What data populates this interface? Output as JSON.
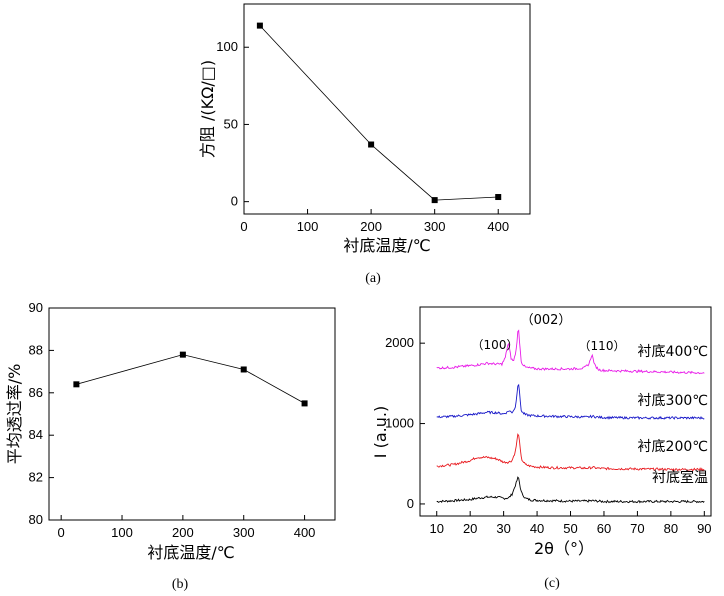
{
  "chart_data": [
    {
      "type": "line",
      "caption": "(a)",
      "xlabel": "衬底温度/℃",
      "ylabel": "方阻 /(KΩ/□)",
      "xlim": [
        0,
        450
      ],
      "ylim": [
        -8,
        128
      ],
      "xticks": [
        0,
        100,
        200,
        300,
        400
      ],
      "yticks": [
        0,
        50,
        100
      ],
      "x": [
        25,
        200,
        300,
        400
      ],
      "series": [
        {
          "values": [
            114,
            37,
            1,
            3
          ]
        }
      ],
      "marker": "square"
    },
    {
      "type": "line",
      "caption": "(b)",
      "xlabel": "衬底温度/℃",
      "ylabel": "平均透过率/%",
      "xlim": [
        -20,
        450
      ],
      "ylim": [
        80,
        90
      ],
      "xticks": [
        0,
        100,
        200,
        300,
        400
      ],
      "yticks": [
        80,
        82,
        84,
        86,
        88,
        90
      ],
      "x": [
        25,
        200,
        300,
        400
      ],
      "series": [
        {
          "values": [
            86.4,
            87.8,
            87.1,
            85.5
          ]
        }
      ],
      "marker": "square"
    },
    {
      "type": "line",
      "caption": "(c)",
      "xlabel": "2θ（°）",
      "ylabel": "I  (a.u.)",
      "xlim": [
        5,
        92
      ],
      "ylim": [
        -150,
        2450
      ],
      "xticks": [
        10,
        20,
        30,
        40,
        50,
        60,
        70,
        80,
        90
      ],
      "yticks": [
        0,
        1000,
        2000
      ],
      "peak_labels": [
        "（100）",
        "（002）",
        "（110）"
      ],
      "series": [
        {
          "name": "衬底室温",
          "color": "#000000",
          "x": [
            10,
            15,
            20,
            22,
            25,
            28,
            30,
            31.5,
            32.5,
            33.5,
            34.4,
            35.3,
            36.5,
            38,
            40,
            45,
            50,
            55,
            56.6,
            58,
            60,
            70,
            80,
            90
          ],
          "values": [
            30,
            40,
            55,
            70,
            85,
            85,
            70,
            75,
            120,
            230,
            340,
            140,
            70,
            50,
            45,
            40,
            35,
            35,
            40,
            35,
            30,
            30,
            30,
            30
          ]
        },
        {
          "name": "衬底200℃",
          "color": "#e8191e",
          "x": [
            10,
            15,
            20,
            22,
            25,
            28,
            30,
            31.5,
            32.5,
            33.5,
            34.4,
            35.3,
            36.5,
            38,
            40,
            45,
            50,
            55,
            56.6,
            58,
            60,
            70,
            80,
            90
          ],
          "values": [
            470,
            490,
            540,
            580,
            580,
            560,
            520,
            520,
            540,
            650,
            900,
            560,
            490,
            470,
            460,
            450,
            450,
            445,
            455,
            445,
            440,
            435,
            430,
            430
          ]
        },
        {
          "name": "衬底300℃",
          "color": "#1818c8",
          "x": [
            10,
            15,
            20,
            22,
            25,
            28,
            30,
            31,
            31.5,
            32.5,
            33.5,
            34.4,
            35.3,
            36.5,
            38,
            40,
            45,
            50,
            55,
            56.6,
            58,
            60,
            70,
            80,
            90
          ],
          "values": [
            1080,
            1090,
            1110,
            1120,
            1140,
            1135,
            1120,
            1140,
            1160,
            1140,
            1200,
            1530,
            1150,
            1110,
            1100,
            1095,
            1090,
            1085,
            1080,
            1090,
            1080,
            1075,
            1070,
            1070,
            1070
          ]
        },
        {
          "name": "衬底400℃",
          "color": "#e81ce8",
          "x": [
            10,
            15,
            20,
            22,
            25,
            28,
            29.5,
            30.5,
            31.4,
            32.3,
            33,
            33.7,
            34.4,
            35.3,
            36.5,
            38,
            40,
            45,
            50,
            54,
            55.5,
            56.4,
            57.3,
            58.5,
            60,
            70,
            80,
            90
          ],
          "values": [
            1690,
            1700,
            1720,
            1730,
            1750,
            1740,
            1740,
            1820,
            2010,
            1800,
            1780,
            1900,
            2200,
            1760,
            1700,
            1690,
            1680,
            1680,
            1680,
            1690,
            1740,
            1860,
            1720,
            1670,
            1660,
            1650,
            1640,
            1630
          ]
        }
      ]
    }
  ]
}
